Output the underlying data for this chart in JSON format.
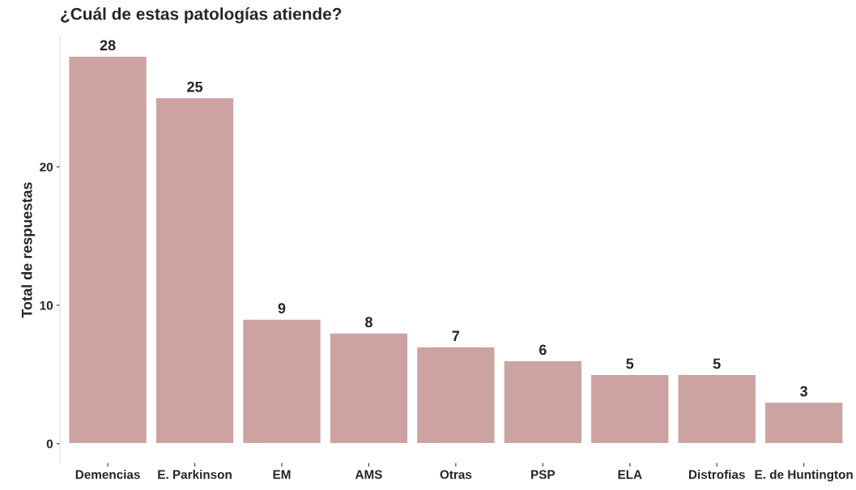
{
  "chart_data": {
    "type": "bar",
    "title": "¿Cuál de estas patologías atiende?",
    "ylabel": "Total de respuestas",
    "categories": [
      "Demencias",
      "E. Parkinson",
      "EM",
      "AMS",
      "Otras",
      "PSP",
      "ELA",
      "Distrofias",
      "E. de Huntington"
    ],
    "values": [
      28,
      25,
      9,
      8,
      7,
      6,
      5,
      5,
      3
    ],
    "color": "#cda3a2",
    "data_labels": true,
    "ylim": [
      -1.4,
      29.4
    ],
    "yticks": [
      0,
      10,
      20
    ],
    "grid": false,
    "legend": false
  }
}
